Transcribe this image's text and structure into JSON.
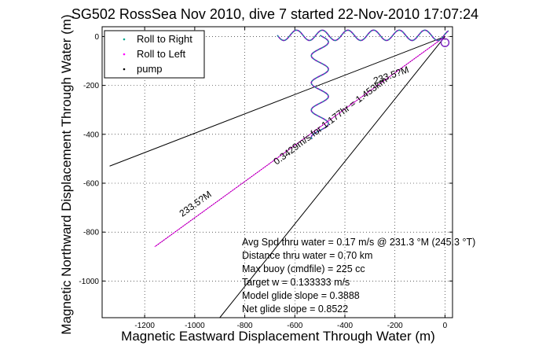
{
  "chart_data": {
    "type": "line",
    "title": "SG502 RossSea Nov 2010, dive 7 started 22-Nov-2010 17:07:24",
    "xlabel": "Magnetic Eastward Displacement Through Water (m)",
    "ylabel": "Magnetic Northward Displacement Through Water (m)",
    "xlim": [
      -1370,
      30
    ],
    "ylim": [
      -1150,
      40
    ],
    "xticks": [
      -1200,
      -1000,
      -800,
      -600,
      -400,
      -200,
      0
    ],
    "yticks": [
      0,
      -200,
      -400,
      -600,
      -800,
      -1000
    ],
    "grid": true,
    "legend_position": "top-left",
    "legend": [
      {
        "name": "Roll to Right",
        "color": "#00a88e",
        "marker": "."
      },
      {
        "name": "Roll to Left",
        "color": "#ff00ff",
        "marker": "."
      },
      {
        "name": "pump",
        "color": "#000000",
        "marker": "."
      }
    ],
    "lines": [
      {
        "x": [
          0,
          -1340
        ],
        "y": [
          0,
          -530
        ],
        "color": "#000000"
      },
      {
        "x": [
          0,
          -1160
        ],
        "y": [
          0,
          -860
        ],
        "color": "#ff00ff"
      },
      {
        "x": [
          0,
          -1160
        ],
        "y": [
          0,
          -860
        ],
        "color": "#000000",
        "dashed": true
      },
      {
        "x": [
          0,
          -900
        ],
        "y": [
          0,
          -1150
        ],
        "color": "#000000"
      }
    ],
    "track": {
      "horizontal": {
        "x": [
          -670,
          20
        ],
        "y": 5
      },
      "vertical": {
        "x": -500,
        "y": [
          5,
          -420
        ]
      },
      "color_right": "#00a88e",
      "color_left": "#7a1fc0"
    },
    "line_labels": [
      "233.5?M",
      "0.3429m/s for 1.177hr = 1.453km",
      "233.5?M"
    ],
    "stats": [
      "Avg Spd thru water =  0.17 m/s @ 231.3   °M (245.3 °T)",
      "Distance thru water =  0.70 km",
      "Max buoy (cmdfile) = 225 cc",
      "Target w = 0.133333 m/s",
      "Model glide slope = 0.3888",
      "Net glide slope = 0.8522"
    ]
  }
}
